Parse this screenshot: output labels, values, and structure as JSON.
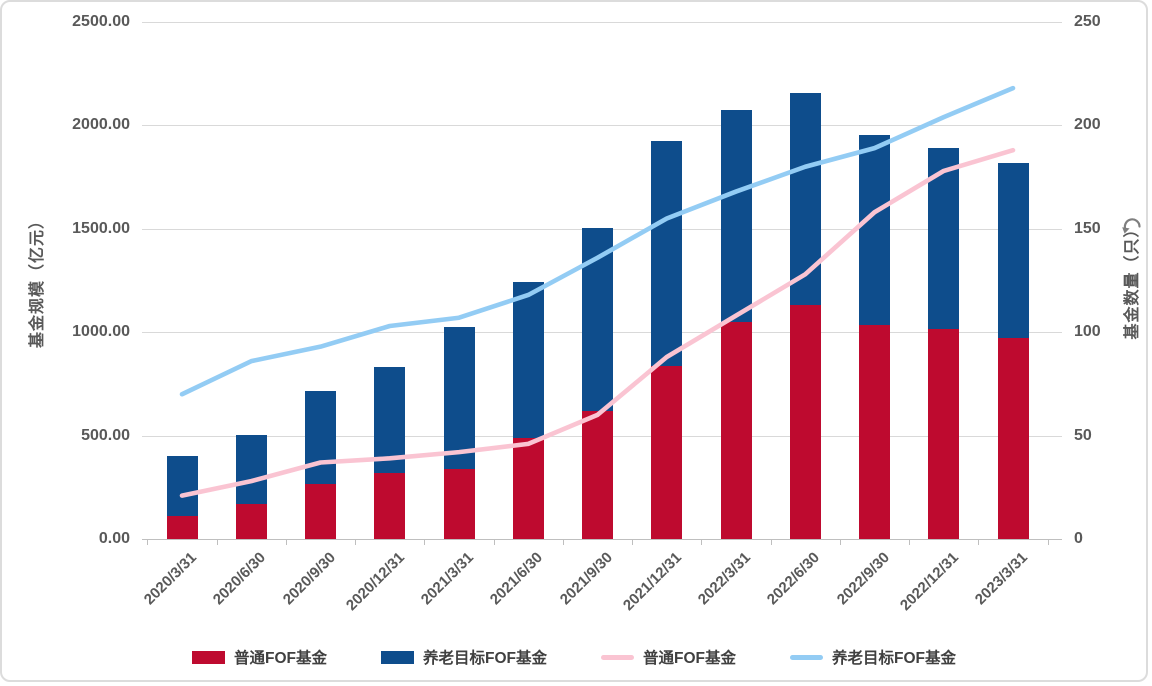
{
  "chart_data": {
    "type": "combo-bar-line",
    "title": "",
    "categories": [
      "2020/3/31",
      "2020/6/30",
      "2020/9/30",
      "2020/12/31",
      "2021/3/31",
      "2021/6/30",
      "2021/9/30",
      "2021/12/31",
      "2022/3/31",
      "2022/6/30",
      "2022/9/30",
      "2022/12/31",
      "2023/3/31"
    ],
    "bar_mode": "stacked",
    "bar_series": [
      {
        "name": "普通FOF基金",
        "color": "#be0a2f",
        "axis": "left",
        "values": [
          110,
          170,
          265,
          320,
          340,
          490,
          620,
          835,
          1050,
          1130,
          1035,
          1015,
          970
        ]
      },
      {
        "name": "养老目标FOF基金",
        "color": "#0e4d8c",
        "axis": "left",
        "values": [
          290,
          335,
          450,
          510,
          685,
          755,
          885,
          1090,
          1025,
          1025,
          920,
          875,
          850
        ]
      }
    ],
    "line_series": [
      {
        "name": "普通FOF基金",
        "color": "#fac4d2",
        "axis": "right",
        "values": [
          21,
          28,
          37,
          39,
          42,
          46,
          60,
          88,
          108,
          128,
          158,
          178,
          188
        ]
      },
      {
        "name": "养老目标FOF基金",
        "color": "#93ccf4",
        "axis": "right",
        "values": [
          70,
          86,
          93,
          103,
          107,
          118,
          136,
          155,
          168,
          180,
          189,
          204,
          218
        ]
      }
    ],
    "left_axis": {
      "title": "基金规模（亿元）",
      "min": 0,
      "max": 2500,
      "step": 500,
      "tick_values": [
        0,
        500,
        1000,
        1500,
        2000,
        2500
      ],
      "tick_labels": [
        "0.00",
        "500.00",
        "1000.00",
        "1500.00",
        "2000.00",
        "2500.00"
      ]
    },
    "right_axis": {
      "title": "基金数量（只）",
      "min": 0,
      "max": 250,
      "step": 50,
      "tick_values": [
        0,
        50,
        100,
        150,
        200,
        250
      ],
      "tick_labels": [
        "0",
        "50",
        "100",
        "150",
        "200",
        "250"
      ]
    },
    "legend": [
      {
        "label": "普通FOF基金",
        "type": "bar",
        "color": "#be0a2f"
      },
      {
        "label": "养老目标FOF基金",
        "type": "bar",
        "color": "#0e4d8c"
      },
      {
        "label": "普通FOF基金",
        "type": "line",
        "color": "#fac4d2"
      },
      {
        "label": "养老目标FOF基金",
        "type": "line",
        "color": "#93ccf4"
      }
    ],
    "grid": "horizontal-only",
    "legend_position": "bottom"
  },
  "icons": {
    "refresh": "curved-arrow"
  },
  "colors": {
    "grid": "#d9d9d9",
    "axis_line": "#bfbfbf",
    "tick_text": "#595959",
    "frame_border": "#dcdcdc"
  }
}
